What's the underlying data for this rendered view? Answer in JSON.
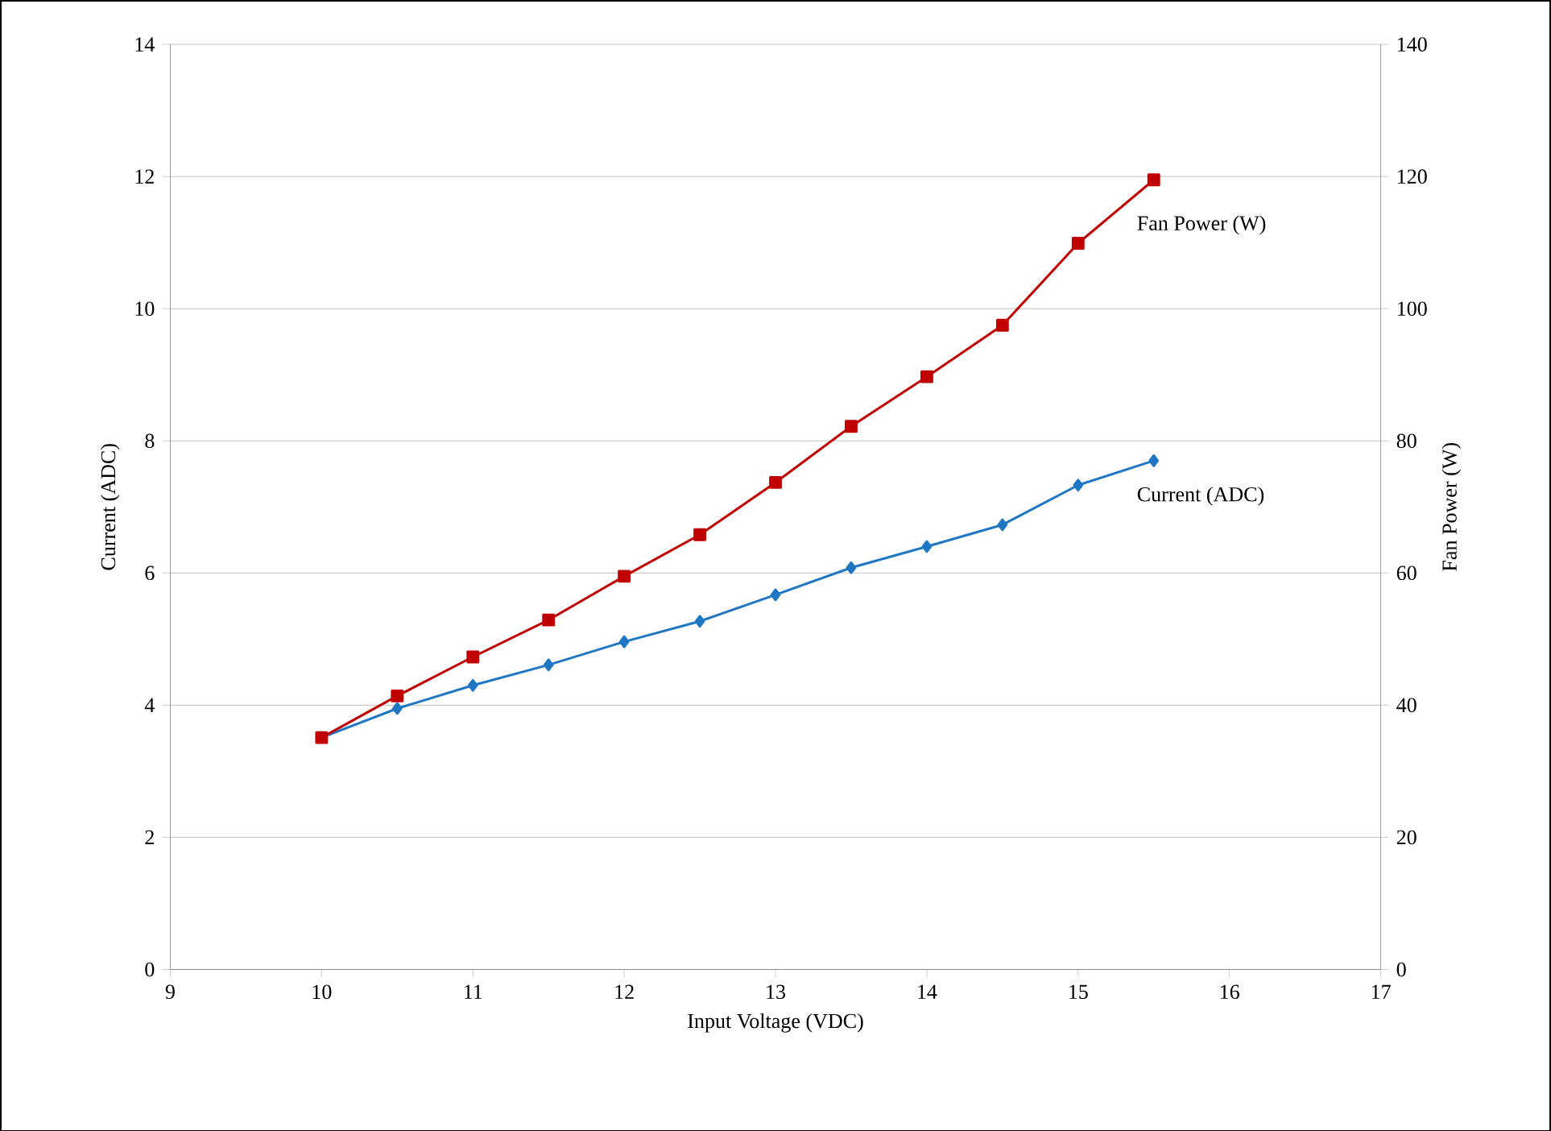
{
  "chart_data": {
    "type": "line",
    "xlabel": "Input Voltage (VDC)",
    "ylabel": "Current (ADC)",
    "y2label": "Fan Power (W)",
    "x": [
      10,
      10.5,
      11,
      11.5,
      12,
      12.5,
      13,
      13.5,
      14,
      14.5,
      15,
      15.5
    ],
    "series": [
      {
        "name": "Current (ADC)",
        "color": "#1f77c4",
        "marker": "diamond",
        "values": [
          3.51,
          3.95,
          4.3,
          4.61,
          4.96,
          5.27,
          5.67,
          6.08,
          6.4,
          6.73,
          7.33,
          7.7
        ]
      },
      {
        "name": "Fan Power (W)",
        "color": "#c00000",
        "marker": "square",
        "axis": "y2",
        "values": [
          35.1,
          41.4,
          47.3,
          52.9,
          59.5,
          65.8,
          73.7,
          82.2,
          89.7,
          97.5,
          109.9,
          119.5
        ]
      }
    ],
    "xlim": [
      9,
      17
    ],
    "xticks": [
      9,
      10,
      11,
      12,
      13,
      14,
      15,
      16,
      17
    ],
    "ylim": [
      0,
      14
    ],
    "yticks": [
      0,
      2,
      4,
      6,
      8,
      10,
      12,
      14
    ],
    "y2lim": [
      0,
      140
    ],
    "y2ticks": [
      0,
      20,
      40,
      60,
      80,
      100,
      120,
      140
    ],
    "grid": "y",
    "line_style": "solid"
  }
}
